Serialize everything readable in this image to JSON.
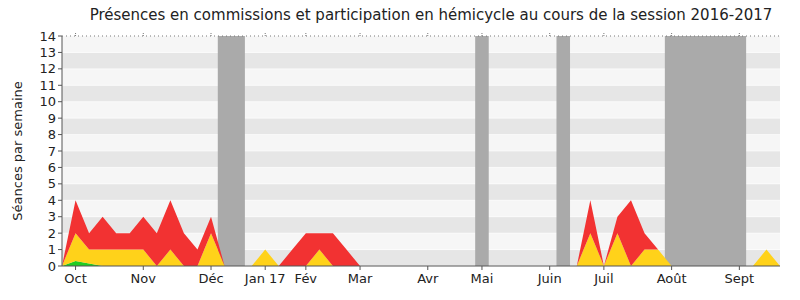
{
  "chart_data": {
    "type": "area",
    "stacked": true,
    "title": "Présences en commissions et participation en hémicycle au cours de la session 2016-2017",
    "y_label": "Séances par semaine",
    "categories": [
      null,
      "Oct",
      null,
      null,
      null,
      null,
      "Nov",
      null,
      null,
      null,
      null,
      "Déc",
      null,
      null,
      null,
      "Jan 17",
      null,
      null,
      "Fév",
      null,
      null,
      null,
      "Mar",
      null,
      null,
      null,
      null,
      "Avr",
      null,
      null,
      null,
      "Mai",
      null,
      null,
      null,
      null,
      "Juin",
      null,
      null,
      null,
      "Juil",
      null,
      null,
      null,
      null,
      "Août",
      null,
      null,
      null,
      null,
      "Sept",
      null,
      null,
      null
    ],
    "series": [
      {
        "color": "#22cc22",
        "values": [
          0,
          0.3,
          0.15,
          0,
          0,
          0,
          0,
          0,
          0,
          0,
          0,
          0,
          0,
          0,
          0,
          0,
          0,
          0,
          0,
          0,
          0,
          0,
          0,
          0,
          0,
          0,
          0,
          0,
          0,
          0,
          0,
          0,
          0,
          0,
          0,
          0,
          0,
          0,
          0,
          0,
          0,
          0,
          0,
          0,
          0,
          0,
          0,
          0,
          0,
          0,
          0,
          0,
          0,
          0
        ]
      },
      {
        "color": "#ffd21a",
        "values": [
          0,
          1.7,
          0.85,
          1,
          1,
          1,
          1,
          0,
          1,
          0,
          0,
          2,
          0,
          0,
          0,
          1,
          0,
          0,
          0,
          1,
          0,
          0,
          0,
          0,
          0,
          0,
          0,
          0,
          0,
          0,
          0,
          0,
          0,
          0,
          0,
          0,
          0,
          0,
          0,
          2,
          0,
          2,
          0,
          1,
          1,
          0,
          0,
          0,
          0,
          0,
          0,
          0,
          1,
          0
        ]
      },
      {
        "color": "#f23232",
        "values": [
          0,
          2,
          1,
          2,
          1,
          1,
          2,
          2,
          3,
          2,
          1,
          1,
          0,
          0,
          0,
          0,
          0,
          1,
          2,
          1,
          2,
          1,
          0,
          0,
          0,
          0,
          0,
          0,
          0,
          0,
          0,
          0,
          0,
          0,
          0,
          0,
          0,
          0,
          0,
          2,
          0,
          1,
          4,
          1,
          0,
          0,
          0,
          0,
          0,
          0,
          0,
          0,
          0,
          0
        ]
      }
    ],
    "shaded_ranges": [
      [
        11.5,
        13.5
      ],
      [
        30.5,
        31.5
      ],
      [
        36.5,
        37.5
      ],
      [
        44.5,
        50.5
      ]
    ],
    "ylim": [
      0,
      14
    ],
    "yticks": [
      0,
      1,
      2,
      3,
      4,
      5,
      6,
      7,
      8,
      9,
      10,
      11,
      12,
      13,
      14
    ],
    "grid": true
  }
}
